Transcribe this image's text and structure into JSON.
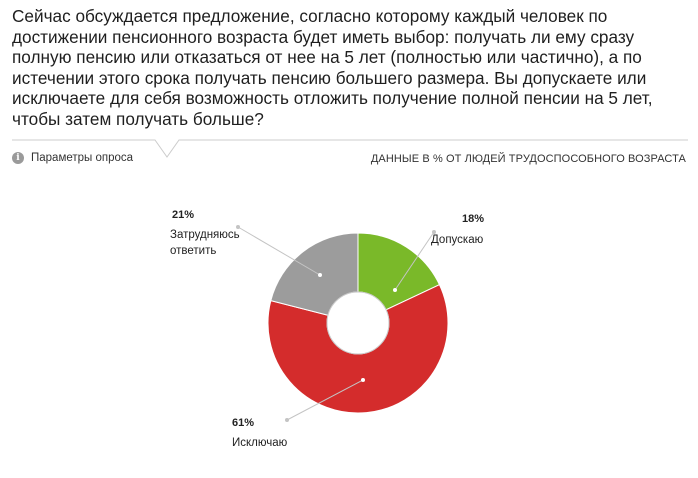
{
  "question": "Сейчас обсуждается предложение, согласно которому каждый человек по достижении пенсионного возраста будет иметь выбор: получать ли ему сразу полную пенсию или отказаться от нее на 5 лет (полностью или частично), а по истечении этого срока получать пенсию большего размера. Вы допускаете или исключаете для себя возможность отложить получение полной пенсии на 5 лет, чтобы затем получать больше?",
  "params": {
    "icon": "info-icon",
    "label": "Параметры опроса"
  },
  "caption": "ДАННЫЕ В % ОТ ЛЮДЕЙ ТРУДОСПОСОБНОГО ВОЗРАСТА",
  "chart_data": {
    "type": "pie",
    "donut": true,
    "slices": [
      {
        "label": "Допускаю",
        "value": 18,
        "value_label": "18%",
        "color": "#7ab929"
      },
      {
        "label": "Исключаю",
        "value": 61,
        "value_label": "61%",
        "color": "#d42c2c"
      },
      {
        "label": "Затрудняюсь ответить",
        "value": 21,
        "value_label": "21%",
        "color": "#9c9c9c"
      }
    ]
  }
}
